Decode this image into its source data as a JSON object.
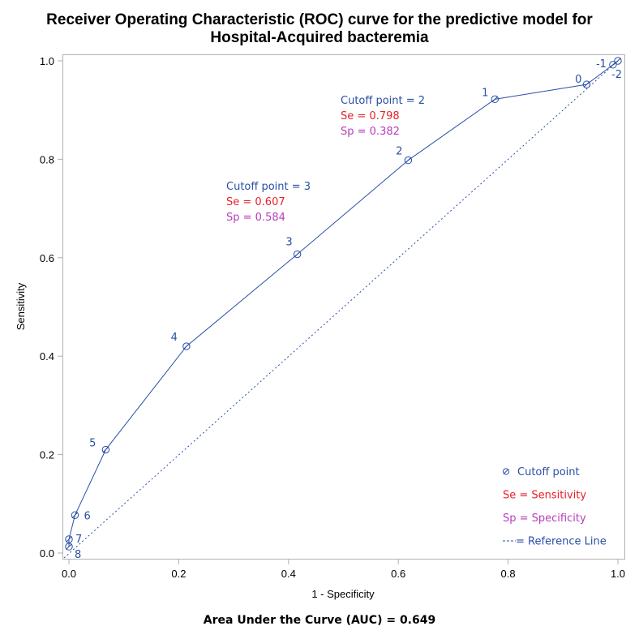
{
  "title_line1": "Receiver Operating Characteristic (ROC) curve for the predictive model for",
  "title_line2": "Hospital-Acquired bacteremia",
  "auc_text": "Area Under the Curve (AUC) = 0.649",
  "colors": {
    "curve": "#2a4fa6",
    "sensitivity": "#e8202a",
    "specificity": "#b83dba",
    "axis": "#b0b0b0"
  },
  "chart_data": {
    "type": "line",
    "title": "Receiver Operating Characteristic (ROC) curve for the predictive model for Hospital-Acquired bacteremia",
    "xlabel": "1 - Specificity",
    "ylabel": "Sensitivity",
    "xlim": [
      0,
      1
    ],
    "ylim": [
      0,
      1
    ],
    "xticks": [
      0.0,
      0.2,
      0.4,
      0.6,
      0.8,
      1.0
    ],
    "yticks": [
      0.0,
      0.2,
      0.4,
      0.6,
      0.8,
      1.0
    ],
    "xtick_labels": [
      "0.0",
      "0.2",
      "0.4",
      "0.6",
      "0.8",
      "1.0"
    ],
    "ytick_labels": [
      "0.0",
      "0.2",
      "0.4",
      "0.6",
      "0.8",
      "1.0"
    ],
    "grid": false,
    "series": [
      {
        "name": "ROC curve",
        "style": "solid",
        "marker": "circle-slash",
        "points": [
          {
            "label": "8",
            "x": 0.0,
            "y": 0.013
          },
          {
            "label": "7",
            "x": 0.0,
            "y": 0.028
          },
          {
            "label": "6",
            "x": 0.011,
            "y": 0.077
          },
          {
            "label": "5",
            "x": 0.067,
            "y": 0.21
          },
          {
            "label": "4",
            "x": 0.214,
            "y": 0.42
          },
          {
            "label": "3",
            "x": 0.416,
            "y": 0.607
          },
          {
            "label": "2",
            "x": 0.618,
            "y": 0.798
          },
          {
            "label": "1",
            "x": 0.776,
            "y": 0.922
          },
          {
            "label": "0",
            "x": 0.943,
            "y": 0.952
          },
          {
            "label": "-1",
            "x": 0.991,
            "y": 0.992
          },
          {
            "label": "-2",
            "x": 1.0,
            "y": 1.0
          }
        ]
      },
      {
        "name": "Reference Line",
        "style": "dashed",
        "points": [
          {
            "x": 0,
            "y": 0
          },
          {
            "x": 1,
            "y": 1
          }
        ]
      }
    ],
    "annotations": [
      {
        "cutoff": "Cutoff point = 2",
        "se": "Se = 0.798",
        "sp": "Sp = 0.382"
      },
      {
        "cutoff": "Cutoff point = 3",
        "se": "Se = 0.607",
        "sp": "Sp = 0.584"
      }
    ],
    "legend": {
      "position": "inside-bottom-right",
      "items": [
        {
          "symbol": "Ø",
          "text": "Cutoff point",
          "color": "curve"
        },
        {
          "symbol": "",
          "text": "Se = Sensitivity",
          "color": "sensitivity"
        },
        {
          "symbol": "",
          "text": "Sp = Specificity",
          "color": "specificity"
        },
        {
          "symbol": "---",
          "text": " = Reference Line",
          "color": "curve"
        }
      ]
    },
    "auc": 0.649
  }
}
